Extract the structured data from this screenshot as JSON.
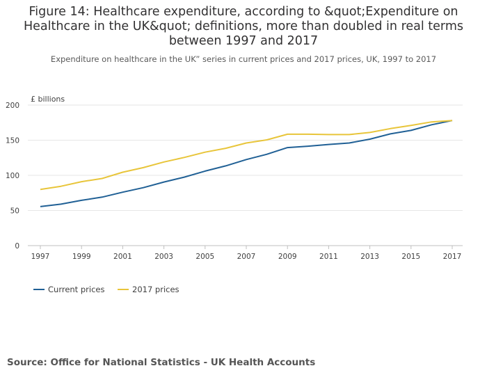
{
  "title": "Figure 14: Healthcare expenditure, according to &quot;Expenditure on Healthcare in the UK&quot; definitions, more than doubled in real terms between 1997 and 2017",
  "subtitle": "Expenditure on healthcare in the UK” series in current prices and 2017 prices, UK, 1997 to 2017",
  "source": "Source: Office for National Statistics - UK Health Accounts",
  "colors": {
    "current": "#206095",
    "real": "#e8c53a",
    "grid": "#e6e6e6",
    "axis": "#bfbfbf"
  },
  "chart_data": {
    "type": "line",
    "ylabel": "£ billions",
    "ylim": [
      0,
      200
    ],
    "yticks": [
      0,
      50,
      100,
      150,
      200
    ],
    "xlim": [
      1997,
      2017
    ],
    "xticks": [
      1997,
      1999,
      2001,
      2003,
      2005,
      2007,
      2009,
      2011,
      2013,
      2015,
      2017
    ],
    "grid": true,
    "legend": "bottom-left",
    "x": [
      1997,
      1998,
      1999,
      2000,
      2001,
      2002,
      2003,
      2004,
      2005,
      2006,
      2007,
      2008,
      2009,
      2010,
      2011,
      2012,
      2013,
      2014,
      2015,
      2016,
      2017
    ],
    "series": [
      {
        "name": "Current prices",
        "color": "#206095",
        "values": [
          55.5,
          59,
          64.5,
          69,
          76,
          82.5,
          90.5,
          97.5,
          106,
          113.5,
          122.5,
          130,
          139.5,
          141.5,
          144,
          146,
          151.5,
          159,
          164,
          172,
          178
        ]
      },
      {
        "name": "2017 prices",
        "color": "#e8c53a",
        "values": [
          80,
          84.5,
          91,
          95.5,
          104.5,
          111,
          119,
          125.5,
          133,
          138.5,
          146,
          150.5,
          158.5,
          158.5,
          158,
          158,
          161,
          166.5,
          171,
          176,
          178
        ]
      }
    ]
  }
}
